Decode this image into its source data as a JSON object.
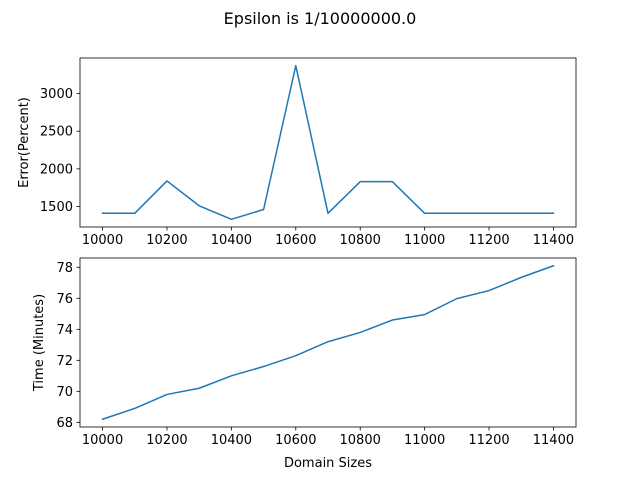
{
  "figure": {
    "suptitle": "Epsilon is 1/10000000.0"
  },
  "chart_data": [
    {
      "type": "line",
      "title": "",
      "xlabel": "",
      "ylabel": "Error(Percent)",
      "x": [
        10000,
        10100,
        10200,
        10300,
        10400,
        10500,
        10600,
        10700,
        10800,
        10900,
        11000,
        11100,
        11200,
        11300,
        11400
      ],
      "series": [
        {
          "values": [
            1410,
            1410,
            1840,
            1510,
            1330,
            1460,
            3370,
            1410,
            1830,
            1830,
            1410,
            1410,
            1410,
            1410,
            1410
          ],
          "color": "#1f77b4"
        }
      ],
      "xticks": [
        10000,
        10200,
        10400,
        10600,
        10800,
        11000,
        11200,
        11400
      ],
      "yticks": [
        1500,
        2000,
        2500,
        3000
      ],
      "xlim": [
        9930,
        11470
      ],
      "ylim": [
        1228,
        3472
      ],
      "grid": false
    },
    {
      "type": "line",
      "title": "",
      "xlabel": "Domain Sizes",
      "ylabel": "Time (Minutes)",
      "x": [
        10000,
        10100,
        10200,
        10300,
        10400,
        10500,
        10600,
        10700,
        10800,
        10900,
        11000,
        11100,
        11200,
        11300,
        11400
      ],
      "series": [
        {
          "values": [
            68.2,
            68.9,
            69.8,
            70.2,
            71.0,
            71.6,
            72.3,
            73.2,
            73.8,
            74.6,
            74.95,
            75.98,
            76.5,
            77.35,
            78.1
          ],
          "color": "#1f77b4"
        }
      ],
      "xticks": [
        10000,
        10200,
        10400,
        10600,
        10800,
        11000,
        11200,
        11400
      ],
      "yticks": [
        68,
        70,
        72,
        74,
        76,
        78
      ],
      "xlim": [
        9930,
        11470
      ],
      "ylim": [
        67.7,
        78.6
      ],
      "grid": false
    }
  ]
}
